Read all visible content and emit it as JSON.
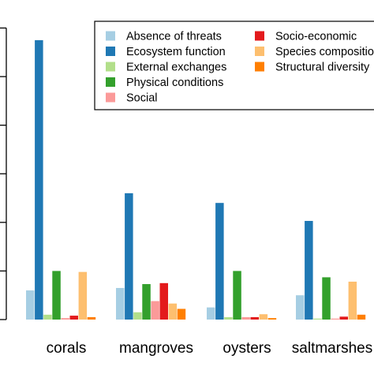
{
  "chart_data": {
    "type": "bar",
    "categories": [
      "corals",
      "mangroves",
      "oysters",
      "saltmarshes"
    ],
    "series": [
      {
        "name": "Absence of threats",
        "color": "#a6cee3",
        "values": [
          6,
          6.5,
          2.5,
          5
        ]
      },
      {
        "name": "Ecosystem function",
        "color": "#1f78b4",
        "values": [
          57.5,
          26,
          24,
          20.3
        ]
      },
      {
        "name": "External exchanges",
        "color": "#b2df8a",
        "values": [
          1,
          1.5,
          0.5,
          0.2
        ]
      },
      {
        "name": "Physical conditions",
        "color": "#33a02c",
        "values": [
          10,
          7.3,
          10,
          8.7
        ]
      },
      {
        "name": "Social",
        "color": "#fb9a99",
        "values": [
          0.3,
          3.8,
          0.5,
          0.2
        ]
      },
      {
        "name": "Socio-economic",
        "color": "#e31a1c",
        "values": [
          0.8,
          7.5,
          0.5,
          0.6
        ]
      },
      {
        "name": "Species composition",
        "color": "#fdbf6f",
        "values": [
          9.8,
          3.3,
          1.1,
          7.8
        ]
      },
      {
        "name": "Structural diversity",
        "color": "#ff7f00",
        "values": [
          0.5,
          2.2,
          0.3,
          1
        ]
      }
    ],
    "ylim": [
      0,
      60
    ],
    "title": "",
    "xlabel": "",
    "ylabel": "",
    "legend": {
      "placement": "top-right",
      "columns": [
        [
          "Absence of threats",
          "Ecosystem function",
          "External exchanges",
          "Physical conditions",
          "Social"
        ],
        [
          "Socio-economic",
          "Species composition",
          "Structural diversity"
        ]
      ]
    },
    "category_labels": [
      "corals",
      "mangroves",
      "oysters",
      "saltmarshes"
    ]
  }
}
